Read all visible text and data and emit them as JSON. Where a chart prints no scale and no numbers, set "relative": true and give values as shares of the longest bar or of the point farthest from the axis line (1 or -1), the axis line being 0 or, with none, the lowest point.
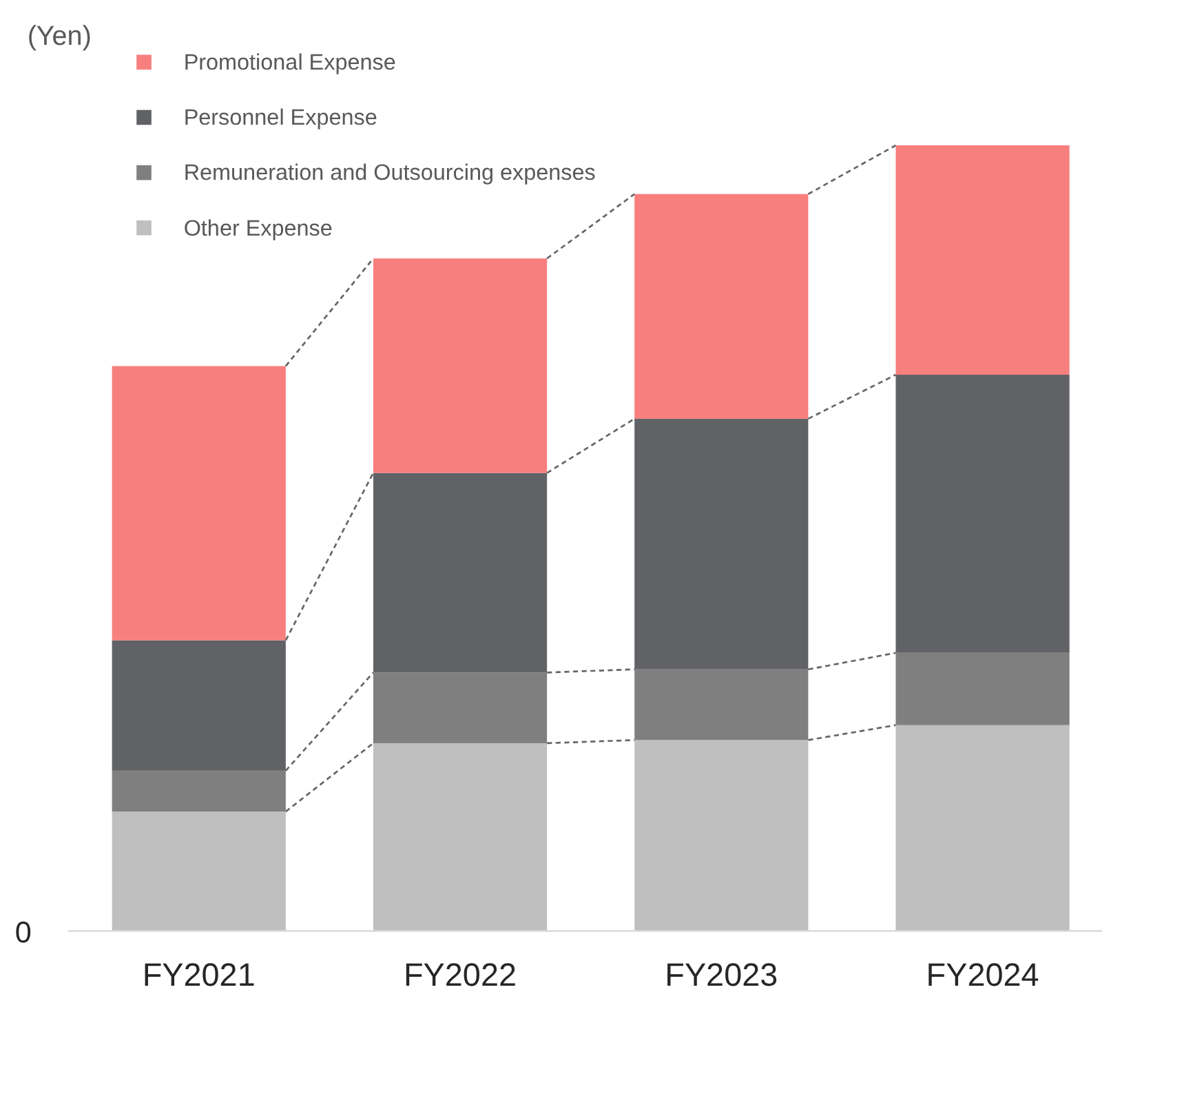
{
  "chart_data": {
    "type": "bar",
    "stacked": true,
    "relative": true,
    "ylabel": "(Yen)",
    "annotations": [
      "0"
    ],
    "categories": [
      "FY2021",
      "FY2022",
      "FY2023",
      "FY2024"
    ],
    "series": [
      {
        "name": "Other Expense",
        "color": "#bfbfbf",
        "values": [
          0.152,
          0.239,
          0.243,
          0.262
        ]
      },
      {
        "name": "Remuneration and Outsourcing expenses",
        "color": "#7f7f7f",
        "values": [
          0.052,
          0.09,
          0.09,
          0.092
        ]
      },
      {
        "name": "Personnel Expense",
        "color": "#616266",
        "values": [
          0.166,
          0.254,
          0.319,
          0.354
        ]
      },
      {
        "name": "Promotional Expense",
        "color": "#f77f7e",
        "values": [
          0.349,
          0.273,
          0.286,
          0.292
        ]
      }
    ],
    "legend": "top left"
  }
}
